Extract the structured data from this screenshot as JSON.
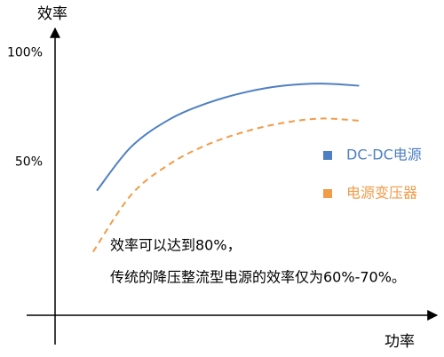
{
  "chart_data": {
    "type": "line",
    "y_label": "效率",
    "x_label": "功率",
    "xlim": [
      0,
      100
    ],
    "ylim": [
      -20,
      110
    ],
    "yticks": [
      {
        "value": 100,
        "label": "100%"
      },
      {
        "value": 50,
        "label": "50%"
      }
    ],
    "grid": false,
    "legend": "right",
    "series": [
      {
        "name": "DC-DC电源",
        "color": "#4e7fc4",
        "style": "solid",
        "x": [
          11,
          20,
          30,
          40,
          50,
          60,
          70,
          80
        ],
        "values": [
          37,
          57,
          69.5,
          77,
          82,
          85,
          86,
          85
        ]
      },
      {
        "name": "电源变压器",
        "color": "#f29b48",
        "style": "dashed",
        "x": [
          10,
          20,
          30,
          40,
          50,
          60,
          70,
          80
        ],
        "values": [
          9,
          35,
          49,
          58,
          64,
          68,
          70,
          69
        ]
      }
    ],
    "annotations": [
      "效率可以达到80%，",
      "传统的降压整流型电源的效率仅为60%-70%。"
    ]
  }
}
